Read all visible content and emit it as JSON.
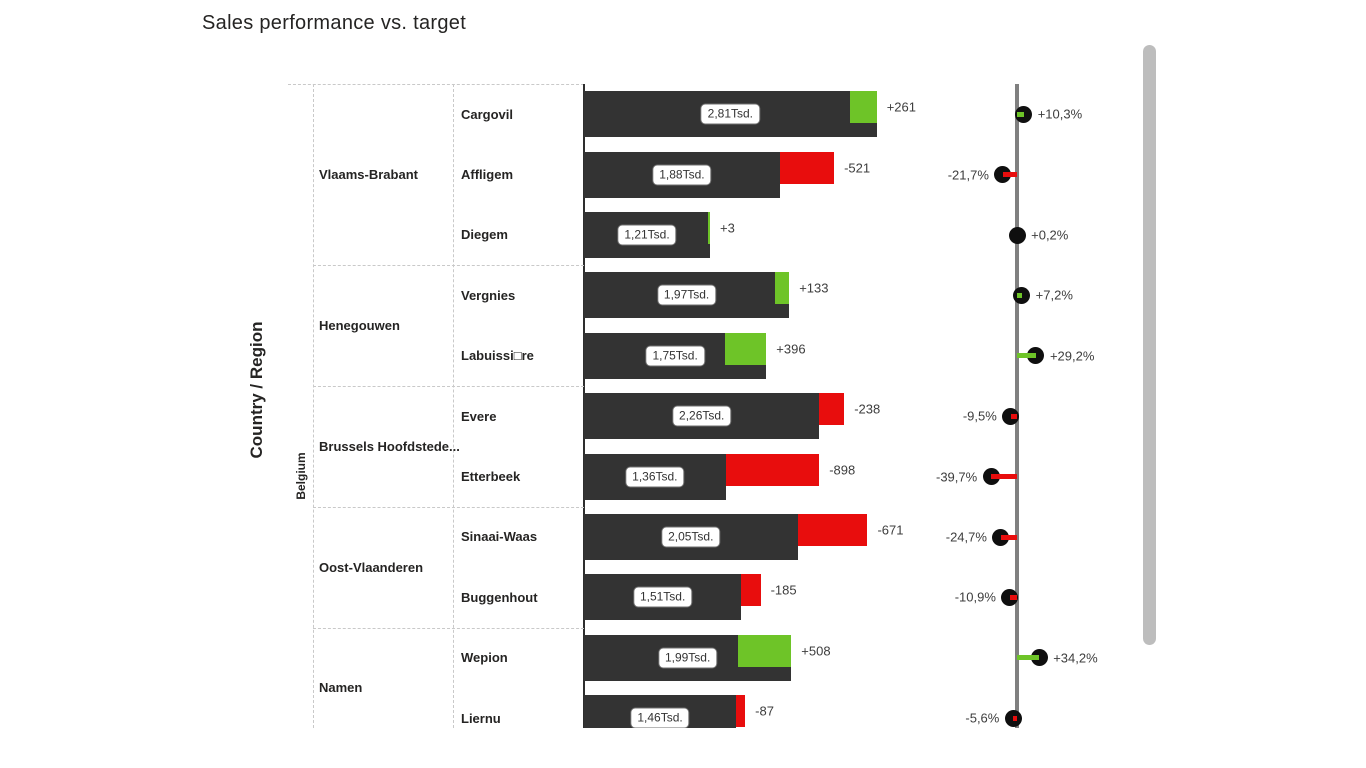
{
  "chart_data": {
    "type": "bar",
    "title": "Sales performance vs. target",
    "category_axis_label": "Country / Region",
    "country": "Belgium",
    "units": "Tsd.",
    "layout": {
      "orientation": "horizontal",
      "grid": "dashed category grid",
      "variance_pins": "right side lollipop axis"
    },
    "colors": {
      "actual_bar": "#333333",
      "favorable": "#6EC428",
      "unfavorable": "#E80D0D",
      "pin_axis": "#808080",
      "pin_dot": "#0F0F0F"
    },
    "groups": [
      {
        "region": "Vlaams-Brabant",
        "rows": [
          {
            "city": "Cargovil",
            "value": 2810,
            "value_label": "2,81Tsd.",
            "variance": 261,
            "variance_label": "+261",
            "pct": 10.3,
            "pct_label": "+10,3%"
          },
          {
            "city": "Affligem",
            "value": 1880,
            "value_label": "1,88Tsd.",
            "variance": -521,
            "variance_label": "-521",
            "pct": -21.7,
            "pct_label": "-21,7%"
          },
          {
            "city": "Diegem",
            "value": 1210,
            "value_label": "1,21Tsd.",
            "variance": 3,
            "variance_label": "+3",
            "pct": 0.2,
            "pct_label": "+0,2%"
          }
        ]
      },
      {
        "region": "Henegouwen",
        "rows": [
          {
            "city": "Vergnies",
            "value": 1970,
            "value_label": "1,97Tsd.",
            "variance": 133,
            "variance_label": "+133",
            "pct": 7.2,
            "pct_label": "+7,2%"
          },
          {
            "city": "Labuissi□re",
            "value": 1750,
            "value_label": "1,75Tsd.",
            "variance": 396,
            "variance_label": "+396",
            "pct": 29.2,
            "pct_label": "+29,2%"
          }
        ]
      },
      {
        "region": "Brussels Hoofdstede...",
        "rows": [
          {
            "city": "Evere",
            "value": 2260,
            "value_label": "2,26Tsd.",
            "variance": -238,
            "variance_label": "-238",
            "pct": -9.5,
            "pct_label": "-9,5%"
          },
          {
            "city": "Etterbeek",
            "value": 1360,
            "value_label": "1,36Tsd.",
            "variance": -898,
            "variance_label": "-898",
            "pct": -39.7,
            "pct_label": "-39,7%"
          }
        ]
      },
      {
        "region": "Oost-Vlaanderen",
        "rows": [
          {
            "city": "Sinaai-Waas",
            "value": 2050,
            "value_label": "2,05Tsd.",
            "variance": -671,
            "variance_label": "-671",
            "pct": -24.7,
            "pct_label": "-24,7%"
          },
          {
            "city": "Buggenhout",
            "value": 1510,
            "value_label": "1,51Tsd.",
            "variance": -185,
            "variance_label": "-185",
            "pct": -10.9,
            "pct_label": "-10,9%"
          }
        ]
      },
      {
        "region": "Namen",
        "rows": [
          {
            "city": "Wepion",
            "value": 1990,
            "value_label": "1,99Tsd.",
            "variance": 508,
            "variance_label": "+508",
            "pct": 34.2,
            "pct_label": "+34,2%"
          },
          {
            "city": "Liernu",
            "value": 1460,
            "value_label": "1,46Tsd.",
            "variance": -87,
            "variance_label": "-87",
            "pct": -5.6,
            "pct_label": "-5,6%"
          }
        ]
      }
    ]
  }
}
